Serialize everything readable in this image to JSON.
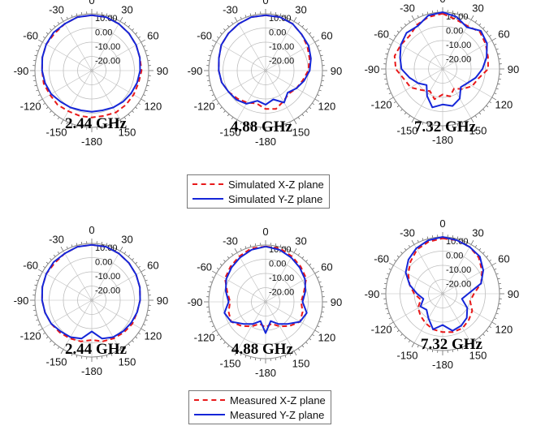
{
  "colors": {
    "xz": "#e8191a",
    "yz": "#1526d8",
    "grid": "#bdbdbd",
    "ticks": "#555555"
  },
  "legends": [
    {
      "entries": [
        {
          "label": "Simulated X-Z plane",
          "style": "dashed",
          "color": "#e8191a"
        },
        {
          "label": "Simulated Y-Z plane",
          "style": "solid",
          "color": "#1526d8"
        }
      ]
    },
    {
      "entries": [
        {
          "label": "Measured X-Z plane",
          "style": "dashed",
          "color": "#e8191a"
        },
        {
          "label": "Measured Y-Z plane",
          "style": "solid",
          "color": "#1526d8"
        }
      ]
    }
  ],
  "angle_labels": [
    "0",
    "30",
    "60",
    "90",
    "120",
    "150",
    "-180",
    "-150",
    "-120",
    "-90",
    "-60",
    "-30"
  ],
  "radial_labels": [
    "10.00",
    "0.00",
    "-10.00",
    "-20.00"
  ],
  "chart_data": [
    {
      "type": "polar",
      "group": "Simulated",
      "title": "2.44 GHz",
      "angle_unit": "deg",
      "r_range": [
        -30,
        10
      ],
      "series": [
        {
          "name": "Simulated X-Z plane",
          "theta": [
            0,
            15,
            30,
            45,
            60,
            75,
            90,
            105,
            120,
            135,
            150,
            165,
            180,
            195,
            210,
            225,
            240,
            255,
            270,
            285,
            300,
            315,
            330,
            345
          ],
          "r": [
            9,
            9,
            8,
            7,
            6,
            5,
            5,
            4,
            4,
            4,
            4,
            3,
            3,
            3,
            3,
            4,
            4,
            5,
            5,
            6,
            7,
            7,
            8,
            9
          ]
        },
        {
          "name": "Simulated Y-Z plane",
          "theta": [
            0,
            15,
            30,
            45,
            60,
            75,
            90,
            105,
            120,
            135,
            150,
            165,
            180,
            195,
            210,
            225,
            240,
            255,
            270,
            285,
            300,
            315,
            330,
            345
          ],
          "r": [
            9,
            9,
            8,
            7,
            6,
            5,
            4,
            3,
            2,
            1,
            0,
            -1,
            -1,
            -1,
            0,
            1,
            3,
            4,
            5,
            6,
            7,
            8,
            8,
            9
          ]
        }
      ]
    },
    {
      "type": "polar",
      "group": "Simulated",
      "title": "4.88 GHz",
      "angle_unit": "deg",
      "r_range": [
        -30,
        10
      ],
      "series": [
        {
          "name": "Simulated X-Z plane",
          "theta": [
            0,
            15,
            30,
            45,
            60,
            75,
            90,
            105,
            120,
            135,
            150,
            165,
            180,
            195,
            210,
            225,
            240,
            255,
            270,
            285,
            300,
            315,
            330,
            345
          ],
          "r": [
            9,
            9,
            8,
            6,
            4,
            2,
            0,
            -3,
            -5,
            -7,
            -5,
            -2,
            -3,
            -6,
            -4,
            -2,
            0,
            2,
            3,
            4,
            6,
            7,
            8,
            9
          ]
        },
        {
          "name": "Simulated Y-Z plane",
          "theta": [
            0,
            15,
            30,
            45,
            60,
            75,
            90,
            105,
            120,
            135,
            150,
            165,
            180,
            195,
            210,
            225,
            240,
            255,
            270,
            285,
            300,
            315,
            330,
            345
          ],
          "r": [
            9,
            9,
            8,
            6,
            5,
            3,
            1,
            -2,
            -5,
            -8,
            -4,
            -9,
            -6,
            -8,
            -3,
            -1,
            0,
            2,
            3,
            4,
            6,
            7,
            8,
            9
          ]
        }
      ]
    },
    {
      "type": "polar",
      "group": "Simulated",
      "title": "7.32 GHz",
      "angle_unit": "deg",
      "r_range": [
        -30,
        10
      ],
      "series": [
        {
          "name": "Simulated X-Z plane",
          "theta": [
            0,
            15,
            30,
            45,
            60,
            75,
            90,
            105,
            120,
            135,
            150,
            165,
            180,
            195,
            210,
            225,
            240,
            255,
            270,
            285,
            300,
            315,
            330,
            345
          ],
          "r": [
            9,
            6,
            5,
            7,
            5,
            3,
            2,
            -4,
            -6,
            -10,
            -14,
            -10,
            -12,
            -8,
            -12,
            -9,
            -4,
            -2,
            3,
            5,
            4,
            3,
            6,
            8
          ]
        },
        {
          "name": "Simulated Y-Z plane",
          "theta": [
            0,
            15,
            30,
            45,
            60,
            75,
            90,
            105,
            120,
            135,
            150,
            165,
            180,
            195,
            210,
            225,
            240,
            255,
            270,
            285,
            300,
            315,
            330,
            345
          ],
          "r": [
            10,
            8,
            4,
            8,
            6,
            2,
            -2,
            -6,
            -10,
            -12,
            -6,
            -3,
            -5,
            -2,
            -8,
            -14,
            -10,
            -6,
            -1,
            1,
            4,
            6,
            5,
            9
          ]
        }
      ]
    },
    {
      "type": "polar",
      "group": "Measured",
      "title": "2.44 GHz",
      "angle_unit": "deg",
      "r_range": [
        -30,
        10
      ],
      "series": [
        {
          "name": "Measured X-Z plane",
          "theta": [
            0,
            15,
            30,
            45,
            60,
            75,
            90,
            105,
            120,
            135,
            150,
            165,
            180,
            195,
            210,
            225,
            240,
            255,
            270,
            285,
            300,
            315,
            330,
            345
          ],
          "r": [
            9,
            9,
            8,
            7,
            6,
            5,
            4,
            3,
            3,
            2,
            1,
            0,
            -2,
            0,
            1,
            2,
            3,
            4,
            5,
            6,
            7,
            7,
            8,
            9
          ]
        },
        {
          "name": "Measured Y-Z plane",
          "theta": [
            0,
            15,
            30,
            45,
            60,
            75,
            90,
            105,
            120,
            135,
            150,
            165,
            180,
            195,
            210,
            225,
            240,
            255,
            270,
            285,
            300,
            315,
            330,
            345
          ],
          "r": [
            9,
            9,
            8,
            7,
            6,
            5,
            4,
            3,
            2,
            1,
            0,
            -2,
            -8,
            -2,
            0,
            1,
            3,
            4,
            5,
            6,
            7,
            8,
            8,
            9
          ]
        }
      ]
    },
    {
      "type": "polar",
      "group": "Measured",
      "title": "4.88 GHz",
      "angle_unit": "deg",
      "r_range": [
        -30,
        10
      ],
      "series": [
        {
          "name": "Measured X-Z plane",
          "theta": [
            0,
            15,
            30,
            45,
            60,
            75,
            90,
            105,
            120,
            135,
            150,
            165,
            180,
            195,
            210,
            225,
            240,
            255,
            270,
            285,
            300,
            315,
            330,
            345
          ],
          "r": [
            9,
            9,
            7,
            5,
            3,
            -2,
            -5,
            -3,
            -2,
            -6,
            -10,
            -14,
            -12,
            -14,
            -10,
            -6,
            -2,
            -3,
            -5,
            -2,
            3,
            5,
            7,
            9
          ]
        },
        {
          "name": "Measured Y-Z plane",
          "theta": [
            0,
            15,
            30,
            45,
            60,
            75,
            90,
            105,
            120,
            135,
            150,
            165,
            180,
            195,
            210,
            225,
            240,
            255,
            270,
            285,
            300,
            315,
            330,
            345
          ],
          "r": [
            9,
            8,
            6,
            4,
            2,
            -1,
            -4,
            0,
            -2,
            -8,
            -12,
            -16,
            -8,
            -16,
            -12,
            -8,
            -2,
            0,
            -4,
            -1,
            2,
            4,
            6,
            8
          ]
        }
      ]
    },
    {
      "type": "polar",
      "group": "Measured",
      "title": "7.32 GHz",
      "angle_unit": "deg",
      "r_range": [
        -30,
        10
      ],
      "series": [
        {
          "name": "Measured X-Z plane",
          "theta": [
            0,
            15,
            30,
            45,
            60,
            75,
            90,
            105,
            120,
            135,
            150,
            165,
            180,
            195,
            210,
            225,
            240,
            255,
            270,
            285,
            300,
            315,
            330,
            345
          ],
          "r": [
            9,
            9,
            8,
            6,
            2,
            -2,
            -8,
            -10,
            -6,
            -4,
            -2,
            -2,
            -3,
            -4,
            -6,
            -8,
            -10,
            -14,
            -10,
            -6,
            -2,
            2,
            6,
            8
          ]
        },
        {
          "name": "Measured Y-Z plane",
          "theta": [
            0,
            15,
            30,
            45,
            60,
            75,
            90,
            105,
            120,
            135,
            150,
            165,
            180,
            195,
            210,
            225,
            240,
            255,
            270,
            285,
            300,
            315,
            330,
            345
          ],
          "r": [
            10,
            9,
            8,
            7,
            3,
            -2,
            -12,
            -16,
            -10,
            -6,
            -4,
            -3,
            -8,
            -4,
            -10,
            -14,
            -12,
            -16,
            -12,
            -6,
            0,
            4,
            7,
            9
          ]
        }
      ]
    }
  ]
}
